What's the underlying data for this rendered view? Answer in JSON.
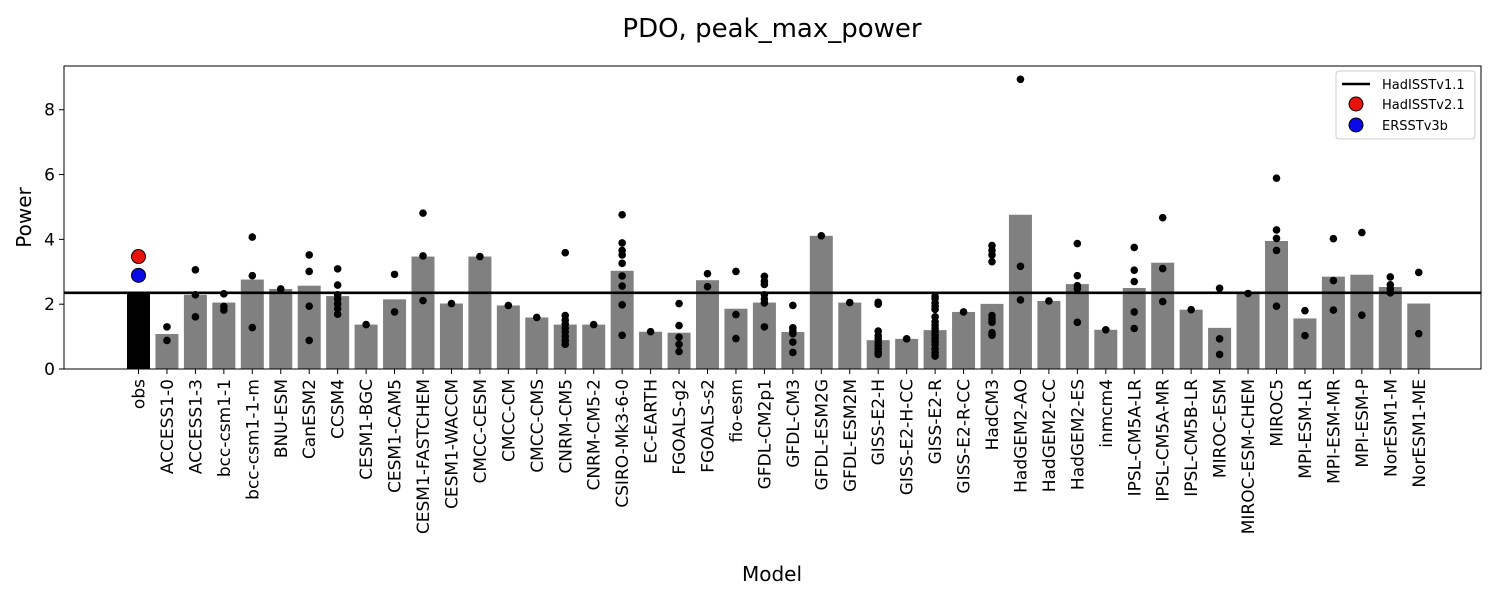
{
  "chart_data": {
    "type": "bar",
    "title": "PDO, peak_max_power",
    "xlabel": "Model",
    "ylabel": "Power",
    "ylim": [
      0,
      9.35
    ],
    "yticks": [
      0,
      2,
      4,
      6,
      8
    ],
    "grid": false,
    "legend_position": "top-right",
    "colors": {
      "obs_bar": "#000000",
      "model_bar": "#808080",
      "member_point": "#000000",
      "reference_line": "#000000",
      "hadisst_v21": "#e8120c",
      "ersst_v3b": "#0a0ae6"
    },
    "reference_line": {
      "name": "HadISSTv1.1",
      "value": 2.35
    },
    "obs_points": [
      {
        "name": "HadISSTv2.1",
        "value": 3.47,
        "color": "#e8120c"
      },
      {
        "name": "ERSSTv3b",
        "value": 2.89,
        "color": "#0a0ae6"
      }
    ],
    "legend": [
      {
        "label": "HadISSTv1.1",
        "kind": "line",
        "color": "#000000"
      },
      {
        "label": "HadISSTv2.1",
        "kind": "marker",
        "color": "#e8120c"
      },
      {
        "label": "ERSSTv3b",
        "kind": "marker",
        "color": "#0a0ae6"
      }
    ],
    "categories": [
      "obs",
      "ACCESS1-0",
      "ACCESS1-3",
      "bcc-csm1-1",
      "bcc-csm1-1-m",
      "BNU-ESM",
      "CanESM2",
      "CCSM4",
      "CESM1-BGC",
      "CESM1-CAM5",
      "CESM1-FASTCHEM",
      "CESM1-WACCM",
      "CMCC-CESM",
      "CMCC-CM",
      "CMCC-CMS",
      "CNRM-CM5",
      "CNRM-CM5-2",
      "CSIRO-Mk3-6-0",
      "EC-EARTH",
      "FGOALS-g2",
      "FGOALS-s2",
      "fio-esm",
      "GFDL-CM2p1",
      "GFDL-CM3",
      "GFDL-ESM2G",
      "GFDL-ESM2M",
      "GISS-E2-H",
      "GISS-E2-H-CC",
      "GISS-E2-R",
      "GISS-E2-R-CC",
      "HadCM3",
      "HadGEM2-AO",
      "HadGEM2-CC",
      "HadGEM2-ES",
      "inmcm4",
      "IPSL-CM5A-LR",
      "IPSL-CM5A-MR",
      "IPSL-CM5B-LR",
      "MIROC-ESM",
      "MIROC-ESM-CHEM",
      "MIROC5",
      "MPI-ESM-LR",
      "MPI-ESM-MR",
      "MPI-ESM-P",
      "NorESM1-M",
      "NorESM1-ME"
    ],
    "values": [
      2.35,
      1.08,
      2.29,
      2.05,
      2.76,
      2.47,
      2.57,
      2.25,
      1.37,
      2.15,
      3.47,
      2.02,
      3.47,
      1.96,
      1.59,
      1.37,
      1.37,
      3.03,
      1.15,
      1.12,
      2.74,
      1.86,
      2.05,
      1.14,
      4.11,
      2.05,
      0.89,
      0.93,
      1.2,
      1.76,
      2.01,
      4.76,
      2.1,
      2.62,
      1.21,
      2.5,
      3.28,
      1.83,
      1.27,
      2.33,
      3.95,
      1.56,
      2.85,
      2.91,
      2.53,
      2.02
    ],
    "members": [
      [],
      [
        1.3,
        0.88
      ],
      [
        3.06,
        2.29,
        1.61
      ],
      [
        2.32,
        1.93,
        1.82
      ],
      [
        4.07,
        2.88,
        1.28
      ],
      [
        2.47
      ],
      [
        3.52,
        3.01,
        1.94,
        0.88
      ],
      [
        3.09,
        2.59,
        2.29,
        2.16,
        2.01,
        1.86,
        1.69
      ],
      [
        1.37
      ],
      [
        2.92,
        1.76
      ],
      [
        4.81,
        3.49,
        2.11
      ],
      [
        2.02
      ],
      [
        3.47
      ],
      [
        1.96
      ],
      [
        1.59
      ],
      [
        3.59,
        1.65,
        1.51,
        1.39,
        1.26,
        1.14,
        1.0,
        0.88,
        0.76
      ],
      [
        1.37
      ],
      [
        4.76,
        3.89,
        3.66,
        3.52,
        3.26,
        2.87,
        2.56,
        1.98,
        1.04
      ],
      [
        1.15
      ],
      [
        2.02,
        1.34,
        0.98,
        0.76,
        0.54
      ],
      [
        2.94,
        2.54
      ],
      [
        3.01,
        1.68,
        0.94
      ],
      [
        2.86,
        2.71,
        2.61,
        2.29,
        2.16,
        2.04,
        1.3
      ],
      [
        1.96,
        1.27,
        1.17,
        1.09,
        0.83,
        0.51
      ],
      [
        4.11
      ],
      [
        2.05
      ],
      [
        2.06,
        2.0,
        1.17,
        1.03,
        0.93,
        0.82,
        0.72,
        0.62,
        0.52,
        0.45
      ],
      [
        0.93
      ],
      [
        2.24,
        2.17,
        2.04,
        1.94,
        1.84,
        1.61,
        1.46,
        1.35,
        1.25,
        1.15,
        1.05,
        0.95,
        0.85,
        0.75,
        0.62,
        0.5,
        0.4
      ],
      [
        1.76
      ],
      [
        3.81,
        3.66,
        3.52,
        3.31,
        1.65,
        1.54,
        1.44,
        1.12,
        1.04
      ],
      [
        8.94,
        3.17,
        2.13
      ],
      [
        2.1
      ],
      [
        3.87,
        2.88,
        2.57,
        2.48,
        1.44
      ],
      [
        1.21
      ],
      [
        3.75,
        3.05,
        2.7,
        1.76,
        1.25
      ],
      [
        4.67,
        3.1,
        2.08
      ],
      [
        1.83
      ],
      [
        2.49,
        0.93,
        0.45
      ],
      [
        2.33
      ],
      [
        5.89,
        4.29,
        4.03,
        3.66,
        1.94
      ],
      [
        1.8,
        1.03
      ],
      [
        4.02,
        2.73,
        1.82
      ],
      [
        4.21,
        1.66
      ],
      [
        2.84,
        2.6,
        2.47,
        2.35
      ],
      [
        2.98,
        1.09
      ]
    ]
  }
}
